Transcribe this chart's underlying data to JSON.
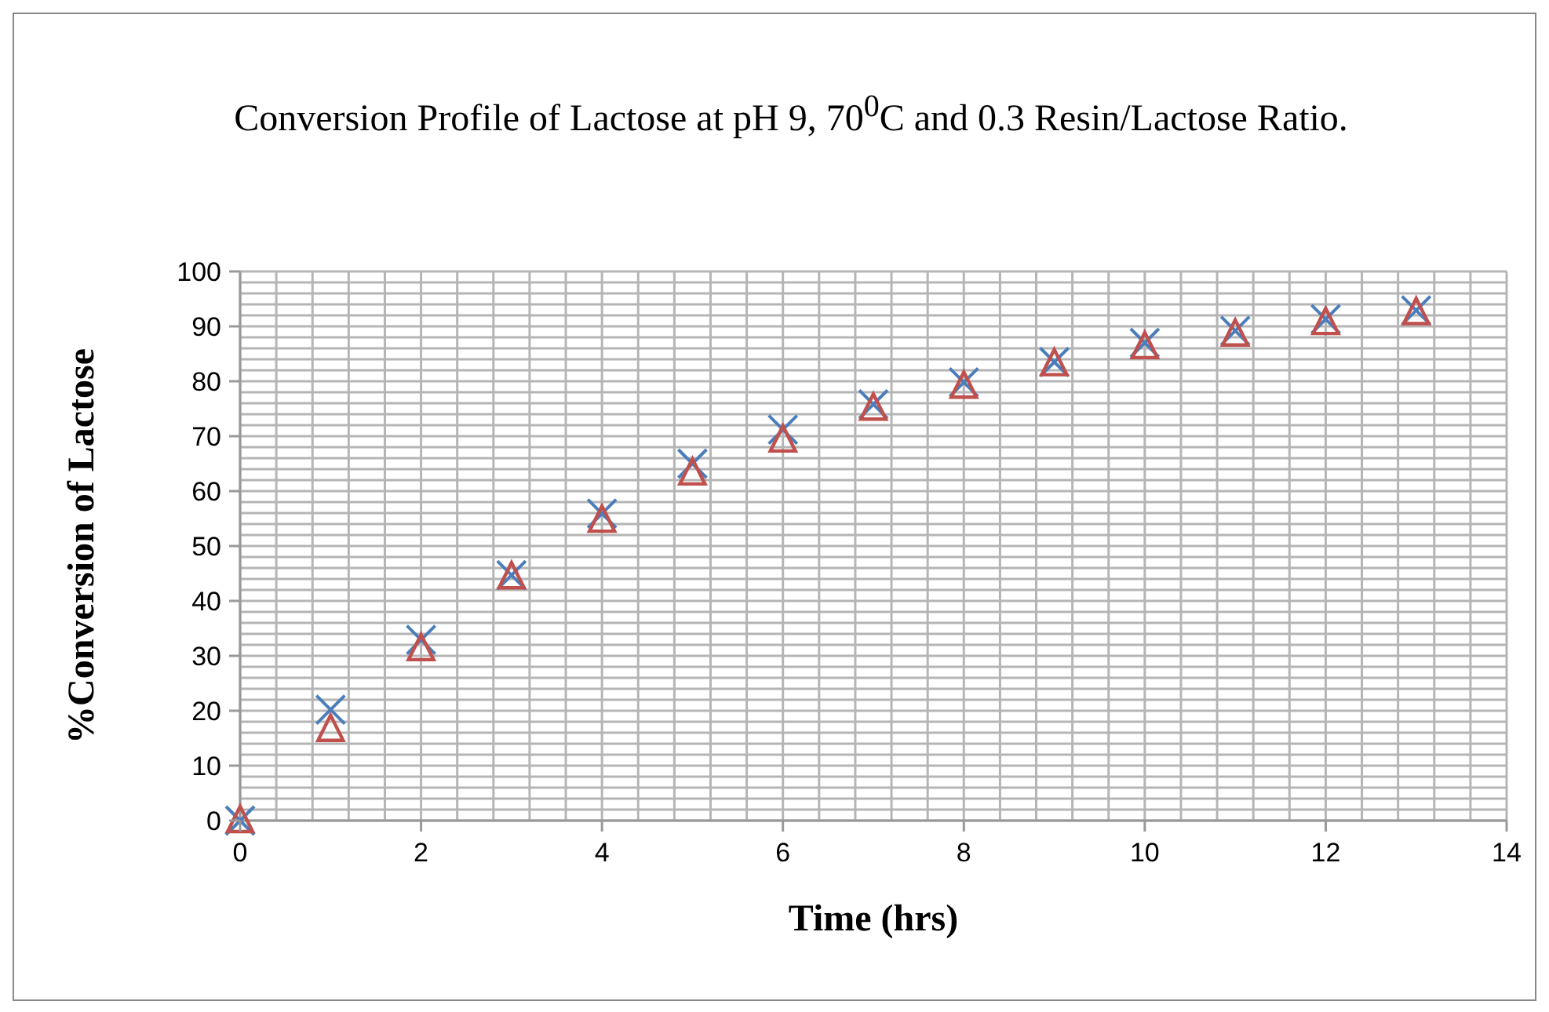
{
  "chart_data": {
    "type": "scatter",
    "title": "Conversion Profile  of Lactose at pH 9, 70$^{0}$C and 0.3 Resin/Lactose Ratio.",
    "xlabel": "Time (hrs)",
    "ylabel": "%Conversion of Lactose",
    "x": [
      0,
      1,
      2,
      3,
      4,
      5,
      6,
      7,
      8,
      9,
      10,
      11,
      12,
      13
    ],
    "series": [
      {
        "color": "#4a7ebb",
        "marker": "cross",
        "values": [
          0,
          20.2,
          32.9,
          44.7,
          55.9,
          65.0,
          71.2,
          75.8,
          79.8,
          83.5,
          87.0,
          89.2,
          91.3,
          92.9
        ]
      },
      {
        "color": "#c0504d",
        "marker": "triangle",
        "values": [
          0,
          16.6,
          31.3,
          44.4,
          54.7,
          63.3,
          69.3,
          75.1,
          79.1,
          83.2,
          86.3,
          88.6,
          90.7,
          92.5
        ]
      }
    ],
    "xlim": [
      0,
      14
    ],
    "xticks": [
      0,
      {
        "value": 0.4,
        "label": null
      },
      {
        "value": 0.8,
        "label": null
      },
      {
        "value": 1.2,
        "label": null
      },
      {
        "value": 1.6,
        "label": null
      },
      2,
      {
        "value": 2.4,
        "label": null
      },
      {
        "value": 2.8,
        "label": null
      },
      {
        "value": 3.2,
        "label": null
      },
      {
        "value": 3.6,
        "label": null
      },
      4,
      {
        "value": 4.4,
        "label": null
      },
      {
        "value": 4.8,
        "label": null
      },
      {
        "value": 5.2,
        "label": null
      },
      {
        "value": 5.6,
        "label": null
      },
      6,
      {
        "value": 6.4,
        "label": null
      },
      {
        "value": 6.8,
        "label": null
      },
      {
        "value": 7.2,
        "label": null
      },
      {
        "value": 7.6,
        "label": null
      },
      8,
      {
        "value": 8.4,
        "label": null
      },
      {
        "value": 8.8,
        "label": null
      },
      {
        "value": 9.2,
        "label": null
      },
      {
        "value": 9.6,
        "label": null
      },
      10,
      {
        "value": 10.4,
        "label": null
      },
      {
        "value": 10.8,
        "label": null
      },
      {
        "value": 11.2,
        "label": null
      },
      {
        "value": 11.6,
        "label": null
      },
      12,
      {
        "value": 12.4,
        "label": null
      },
      {
        "value": 12.8,
        "label": null
      },
      {
        "value": 13.2,
        "label": null
      },
      {
        "value": 13.6,
        "label": null
      },
      14
    ],
    "ylim": [
      0,
      100
    ],
    "yticks": [
      0,
      {
        "value": 2,
        "label": null
      },
      {
        "value": 4,
        "label": null
      },
      {
        "value": 6,
        "label": null
      },
      {
        "value": 8,
        "label": null
      },
      10,
      {
        "value": 12,
        "label": null
      },
      {
        "value": 14,
        "label": null
      },
      {
        "value": 16,
        "label": null
      },
      {
        "value": 18,
        "label": null
      },
      20,
      {
        "value": 22,
        "label": null
      },
      {
        "value": 24,
        "label": null
      },
      {
        "value": 26,
        "label": null
      },
      {
        "value": 28,
        "label": null
      },
      30,
      {
        "value": 32,
        "label": null
      },
      {
        "value": 34,
        "label": null
      },
      {
        "value": 36,
        "label": null
      },
      {
        "value": 38,
        "label": null
      },
      40,
      {
        "value": 42,
        "label": null
      },
      {
        "value": 44,
        "label": null
      },
      {
        "value": 46,
        "label": null
      },
      {
        "value": 48,
        "label": null
      },
      50,
      {
        "value": 52,
        "label": null
      },
      {
        "value": 54,
        "label": null
      },
      {
        "value": 56,
        "label": null
      },
      {
        "value": 58,
        "label": null
      },
      60,
      {
        "value": 62,
        "label": null
      },
      {
        "value": 64,
        "label": null
      },
      {
        "value": 66,
        "label": null
      },
      {
        "value": 68,
        "label": null
      },
      70,
      {
        "value": 72,
        "label": null
      },
      {
        "value": 74,
        "label": null
      },
      {
        "value": 76,
        "label": null
      },
      {
        "value": 78,
        "label": null
      },
      80,
      {
        "value": 82,
        "label": null
      },
      {
        "value": 84,
        "label": null
      },
      {
        "value": 86,
        "label": null
      },
      {
        "value": 88,
        "label": null
      },
      90,
      {
        "value": 92,
        "label": null
      },
      {
        "value": 94,
        "label": null
      },
      {
        "value": 96,
        "label": null
      },
      {
        "value": 98,
        "label": null
      },
      100
    ],
    "grid": true,
    "legend": false
  }
}
